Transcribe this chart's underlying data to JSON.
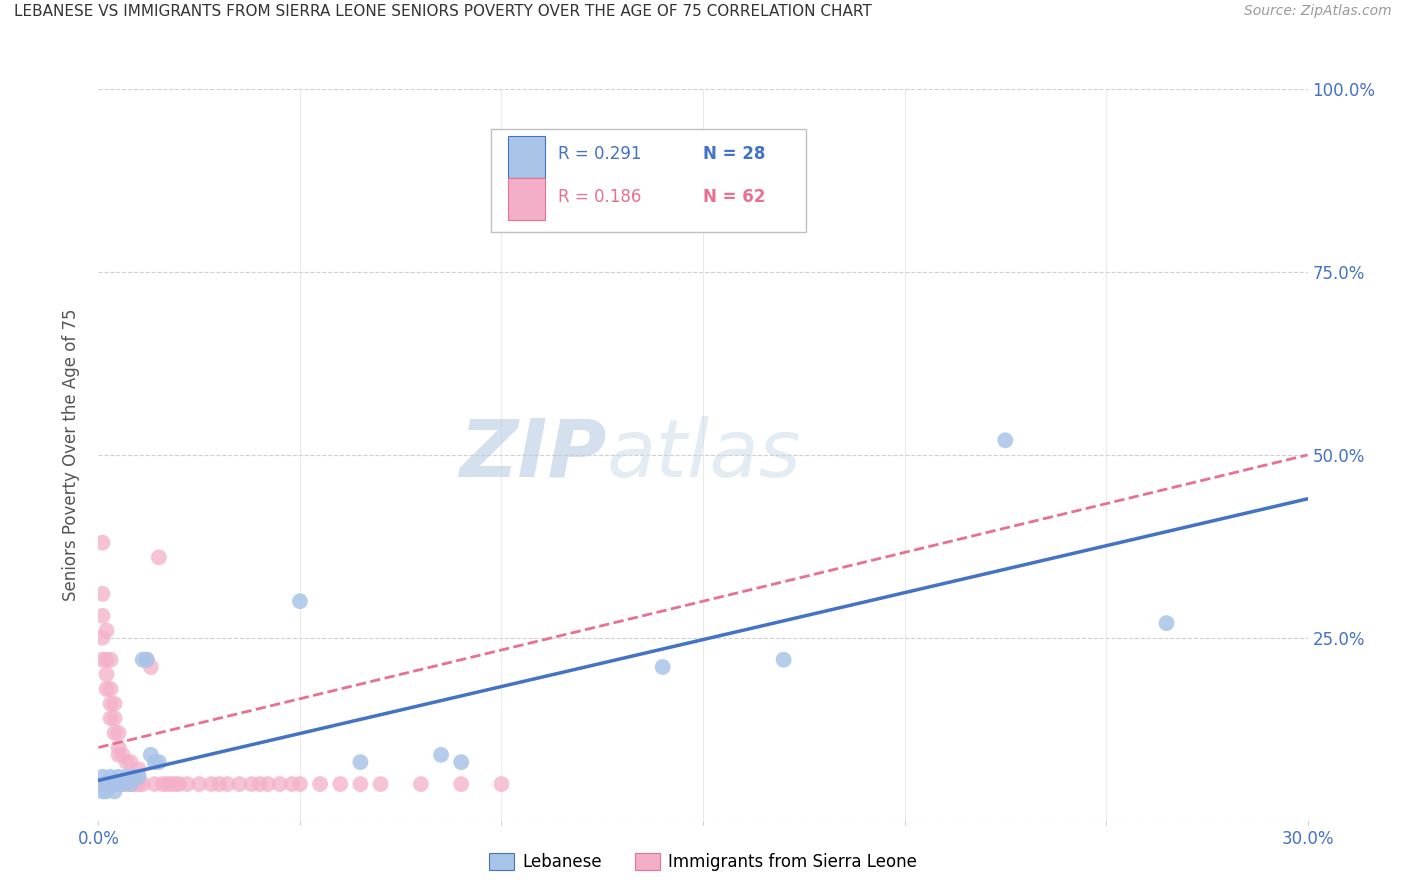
{
  "title": "LEBANESE VS IMMIGRANTS FROM SIERRA LEONE SENIORS POVERTY OVER THE AGE OF 75 CORRELATION CHART",
  "source": "Source: ZipAtlas.com",
  "ylabel": "Seniors Poverty Over the Age of 75",
  "xlim": [
    0.0,
    0.3
  ],
  "ylim": [
    0.0,
    1.0
  ],
  "xticks": [
    0.0,
    0.05,
    0.1,
    0.15,
    0.2,
    0.25,
    0.3
  ],
  "yticks": [
    0.0,
    0.25,
    0.5,
    0.75,
    1.0
  ],
  "legend_r1": "R = 0.291",
  "legend_n1": "N = 28",
  "legend_r2": "R = 0.186",
  "legend_n2": "N = 62",
  "color_lebanese": "#a8c4e8",
  "color_sierra": "#f4afc8",
  "color_line_lebanese": "#4472c4",
  "color_line_sierra": "#e87090",
  "label_lebanese": "Lebanese",
  "label_sierra": "Immigrants from Sierra Leone",
  "watermark1": "ZIP",
  "watermark2": "atlas",
  "lebanese_x": [
    0.001,
    0.001,
    0.002,
    0.002,
    0.003,
    0.003,
    0.004,
    0.004,
    0.005,
    0.005,
    0.006,
    0.007,
    0.008,
    0.009,
    0.01,
    0.011,
    0.012,
    0.013,
    0.014,
    0.015,
    0.05,
    0.065,
    0.085,
    0.09,
    0.14,
    0.17,
    0.225,
    0.265
  ],
  "lebanese_y": [
    0.06,
    0.04,
    0.05,
    0.04,
    0.06,
    0.05,
    0.05,
    0.04,
    0.06,
    0.05,
    0.05,
    0.06,
    0.05,
    0.06,
    0.06,
    0.22,
    0.22,
    0.09,
    0.08,
    0.08,
    0.3,
    0.08,
    0.09,
    0.08,
    0.21,
    0.22,
    0.52,
    0.27
  ],
  "sierra_x": [
    0.001,
    0.001,
    0.001,
    0.001,
    0.001,
    0.001,
    0.002,
    0.002,
    0.002,
    0.002,
    0.002,
    0.003,
    0.003,
    0.003,
    0.003,
    0.003,
    0.004,
    0.004,
    0.004,
    0.004,
    0.005,
    0.005,
    0.005,
    0.005,
    0.006,
    0.006,
    0.007,
    0.007,
    0.008,
    0.008,
    0.009,
    0.01,
    0.01,
    0.011,
    0.012,
    0.013,
    0.014,
    0.015,
    0.016,
    0.017,
    0.018,
    0.019,
    0.02,
    0.022,
    0.025,
    0.028,
    0.03,
    0.032,
    0.035,
    0.038,
    0.04,
    0.042,
    0.045,
    0.048,
    0.05,
    0.055,
    0.06,
    0.065,
    0.07,
    0.08,
    0.09,
    0.1
  ],
  "sierra_y": [
    0.38,
    0.31,
    0.28,
    0.25,
    0.22,
    0.05,
    0.26,
    0.22,
    0.2,
    0.18,
    0.05,
    0.22,
    0.18,
    0.16,
    0.14,
    0.05,
    0.16,
    0.14,
    0.12,
    0.05,
    0.12,
    0.1,
    0.09,
    0.05,
    0.09,
    0.05,
    0.08,
    0.05,
    0.08,
    0.05,
    0.05,
    0.07,
    0.05,
    0.05,
    0.22,
    0.21,
    0.05,
    0.36,
    0.05,
    0.05,
    0.05,
    0.05,
    0.05,
    0.05,
    0.05,
    0.05,
    0.05,
    0.05,
    0.05,
    0.05,
    0.05,
    0.05,
    0.05,
    0.05,
    0.05,
    0.05,
    0.05,
    0.05,
    0.05,
    0.05,
    0.05,
    0.05
  ],
  "trend_leb_x0": 0.0,
  "trend_leb_y0": 0.055,
  "trend_leb_x1": 0.3,
  "trend_leb_y1": 0.44,
  "trend_sie_x0": 0.0,
  "trend_sie_y0": 0.1,
  "trend_sie_x1": 0.3,
  "trend_sie_y1": 0.5
}
